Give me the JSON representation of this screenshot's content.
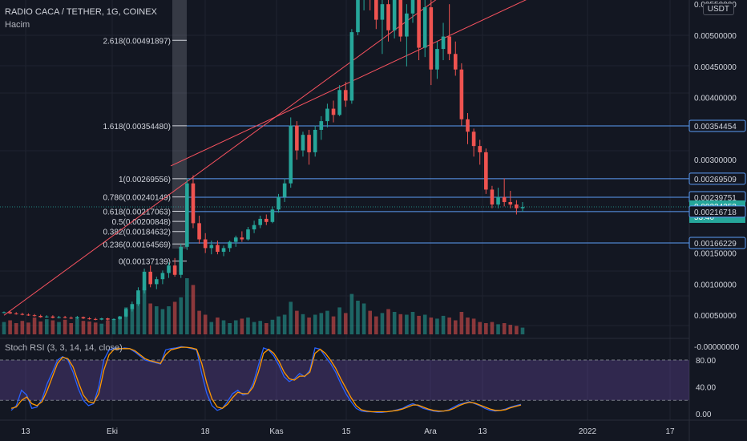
{
  "header": {
    "symbol": "RADIO CACA / TETHER, 1G, COINEX",
    "volume_label": "Hacim",
    "currency": "USDT"
  },
  "indicator": {
    "label": "Stoch RSI (3, 3, 14, 14, close)"
  },
  "colors": {
    "bg": "#131722",
    "up": "#26a69a",
    "down": "#ef5350",
    "grid": "#1f2330",
    "fib": "#9598a1",
    "hline": "#5b9cf6",
    "channel": "#f7525f",
    "rsi_k": "#2962ff",
    "rsi_d": "#ff9800",
    "rsi_band": "#7e57c2"
  },
  "chart_data": [
    {
      "type": "candlestick",
      "y_axis": {
        "range": [
          -0.0002,
          0.0059
        ],
        "ticks": [
          "0.00500000",
          "0.00450000",
          "0.00400000",
          "0.00300000",
          "0.00150000",
          "0.00100000",
          "0.00050000",
          "-0.00000000"
        ],
        "truncated_top_tick": "0.00550000"
      },
      "x_axis": {
        "ticks": [
          "13",
          "Eki",
          "18",
          "Kas",
          "15",
          "Ara",
          "13",
          "2022",
          "17"
        ]
      },
      "price_tags": [
        {
          "label": "0.00354454",
          "value": 0.00354454,
          "style": "line"
        },
        {
          "label": "0.00269509",
          "value": 0.00269509,
          "style": "line"
        },
        {
          "label": "0.00239751",
          "value": 0.00239751,
          "style": "line"
        },
        {
          "label": "0.00224252",
          "value": 0.00224252,
          "style": "current",
          "countdown": "53:40"
        },
        {
          "label": "0.00216718",
          "value": 0.00216718,
          "style": "line"
        },
        {
          "label": "0.00166229",
          "value": 0.00166229,
          "style": "line"
        }
      ],
      "fib_levels": [
        {
          "label": "2.618(0.00491897)",
          "value": 0.00491897
        },
        {
          "label": "1.618(0.00354480)",
          "value": 0.0035448
        },
        {
          "label": "1(0.00269556)",
          "value": 0.00269556
        },
        {
          "label": "0.786(0.00240149)",
          "value": 0.00240149
        },
        {
          "label": "0.618(0.00217063)",
          "value": 0.00217063
        },
        {
          "label": "0.5(0.00200848)",
          "value": 0.00200848
        },
        {
          "label": "0.382(0.00184632)",
          "value": 0.00184632
        },
        {
          "label": "0.236(0.00164569)",
          "value": 0.00164569
        },
        {
          "label": "0(0.00137139)",
          "value": 0.00137139
        }
      ],
      "channel": {
        "lower": [
          [
            0,
            0.0005
          ],
          [
            74,
            0.0058
          ]
        ],
        "upper": [
          [
            30,
            0.0029
          ],
          [
            90,
            0.0058
          ]
        ]
      },
      "candles": [
        [
          0.00054,
          0.00056,
          0.00053,
          0.00055
        ],
        [
          0.00055,
          0.00057,
          0.00052,
          0.00053
        ],
        [
          0.00053,
          0.00055,
          0.00051,
          0.00052
        ],
        [
          0.00052,
          0.00054,
          0.0005,
          0.00051
        ],
        [
          0.00051,
          0.00053,
          0.00049,
          0.0005
        ],
        [
          0.0005,
          0.00052,
          0.00048,
          0.00049
        ],
        [
          0.00049,
          0.00051,
          0.00046,
          0.00047
        ],
        [
          0.00047,
          0.0005,
          0.00046,
          0.00048
        ],
        [
          0.00048,
          0.0005,
          0.00045,
          0.00046
        ],
        [
          0.00046,
          0.00049,
          0.00045,
          0.00047
        ],
        [
          0.00047,
          0.00049,
          0.00045,
          0.00046
        ],
        [
          0.00046,
          0.00048,
          0.00044,
          0.00045
        ],
        [
          0.00045,
          0.00049,
          0.00044,
          0.00047
        ],
        [
          0.00047,
          0.00048,
          0.00044,
          0.00045
        ],
        [
          0.00045,
          0.00047,
          0.00043,
          0.00044
        ],
        [
          0.00044,
          0.00046,
          0.00042,
          0.00043
        ],
        [
          0.00043,
          0.00046,
          0.00042,
          0.00045
        ],
        [
          0.00045,
          0.00046,
          0.00042,
          0.00043
        ],
        [
          0.00043,
          0.00045,
          0.00042,
          0.00044
        ],
        [
          0.00044,
          0.00049,
          0.00043,
          0.00048
        ],
        [
          0.00048,
          0.00062,
          0.00047,
          0.0006
        ],
        [
          0.0006,
          0.00072,
          0.00056,
          0.00068
        ],
        [
          0.00068,
          0.00095,
          0.00065,
          0.0009
        ],
        [
          0.0009,
          0.00125,
          0.00085,
          0.0012
        ],
        [
          0.0012,
          0.0013,
          0.00095,
          0.001
        ],
        [
          0.001,
          0.00112,
          0.00092,
          0.00108
        ],
        [
          0.00108,
          0.00122,
          0.001,
          0.00118
        ],
        [
          0.00118,
          0.00135,
          0.0011,
          0.0013
        ],
        [
          0.0013,
          0.00142,
          0.00112,
          0.00115
        ],
        [
          0.00115,
          0.00165,
          0.0011,
          0.0016
        ],
        [
          0.0016,
          0.0027,
          0.00155,
          0.00262
        ],
        [
          0.00262,
          0.00275,
          0.0019,
          0.00198
        ],
        [
          0.00198,
          0.0021,
          0.00165,
          0.00172
        ],
        [
          0.00172,
          0.00182,
          0.0015,
          0.00158
        ],
        [
          0.00158,
          0.0017,
          0.00148,
          0.00163
        ],
        [
          0.00163,
          0.0017,
          0.00148,
          0.00152
        ],
        [
          0.00152,
          0.00162,
          0.00145,
          0.00158
        ],
        [
          0.00158,
          0.0017,
          0.00152,
          0.00168
        ],
        [
          0.00168,
          0.00178,
          0.0016,
          0.00175
        ],
        [
          0.00175,
          0.00185,
          0.00168,
          0.00172
        ],
        [
          0.00172,
          0.00192,
          0.0017,
          0.00188
        ],
        [
          0.00188,
          0.00202,
          0.00182,
          0.00195
        ],
        [
          0.00195,
          0.0021,
          0.0019,
          0.00205
        ],
        [
          0.00205,
          0.00212,
          0.00195,
          0.002
        ],
        [
          0.002,
          0.00225,
          0.00198,
          0.0022
        ],
        [
          0.0022,
          0.00245,
          0.00215,
          0.0024
        ],
        [
          0.0024,
          0.0027,
          0.00232,
          0.00262
        ],
        [
          0.00262,
          0.00368,
          0.00255,
          0.00355
        ],
        [
          0.00355,
          0.00362,
          0.003,
          0.00315
        ],
        [
          0.00315,
          0.00345,
          0.00305,
          0.0034
        ],
        [
          0.0034,
          0.00348,
          0.00292,
          0.00312
        ],
        [
          0.00312,
          0.00355,
          0.00305,
          0.00348
        ],
        [
          0.00348,
          0.0037,
          0.00332,
          0.00362
        ],
        [
          0.00362,
          0.0039,
          0.00352,
          0.00382
        ],
        [
          0.00382,
          0.00395,
          0.0036,
          0.00372
        ],
        [
          0.00372,
          0.0042,
          0.0037,
          0.00412
        ],
        [
          0.00412,
          0.00425,
          0.00385,
          0.00395
        ],
        [
          0.00395,
          0.0051,
          0.0039,
          0.00505
        ],
        [
          0.00505,
          0.0058,
          0.005,
          0.0057
        ],
        [
          0.0057,
          0.0059,
          0.0054,
          0.00575
        ],
        [
          0.0058,
          0.0059,
          0.0054,
          0.00562
        ],
        [
          0.00562,
          0.0059,
          0.0051,
          0.00525
        ],
        [
          0.00525,
          0.0057,
          0.0047,
          0.0055
        ],
        [
          0.0055,
          0.0058,
          0.0049,
          0.00508
        ],
        [
          0.00508,
          0.0059,
          0.00495,
          0.0057
        ],
        [
          0.0057,
          0.0059,
          0.0049,
          0.00498
        ],
        [
          0.00498,
          0.0055,
          0.0045,
          0.00535
        ],
        [
          0.00535,
          0.0059,
          0.0052,
          0.0058
        ],
        [
          0.0058,
          0.0059,
          0.0046,
          0.0048
        ],
        [
          0.0048,
          0.0056,
          0.00465,
          0.00545
        ],
        [
          0.00545,
          0.0057,
          0.0042,
          0.00445
        ],
        [
          0.00445,
          0.0049,
          0.0043,
          0.00478
        ],
        [
          0.00478,
          0.0052,
          0.0046,
          0.00498
        ],
        [
          0.00498,
          0.0055,
          0.0046,
          0.0047
        ],
        [
          0.0047,
          0.0049,
          0.00435,
          0.00445
        ],
        [
          0.00445,
          0.00455,
          0.00355,
          0.00365
        ],
        [
          0.00365,
          0.00375,
          0.00325,
          0.00345
        ],
        [
          0.00345,
          0.0035,
          0.00305,
          0.00322
        ],
        [
          0.00322,
          0.00332,
          0.00292,
          0.00312
        ],
        [
          0.00312,
          0.00318,
          0.00245,
          0.00252
        ],
        [
          0.00252,
          0.00258,
          0.00222,
          0.00228
        ],
        [
          0.00228,
          0.00255,
          0.00222,
          0.0024
        ],
        [
          0.0024,
          0.0027,
          0.00225,
          0.00232
        ],
        [
          0.00232,
          0.0025,
          0.00222,
          0.00228
        ],
        [
          0.00228,
          0.00235,
          0.00212,
          0.00222
        ],
        [
          0.00222,
          0.00232,
          0.00216,
          0.00224
        ]
      ],
      "volume": [
        0.22,
        0.25,
        0.2,
        0.24,
        0.21,
        0.3,
        0.23,
        0.27,
        0.25,
        0.22,
        0.26,
        0.2,
        0.28,
        0.24,
        0.23,
        0.21,
        0.19,
        0.25,
        0.27,
        0.32,
        0.48,
        0.46,
        0.64,
        0.84,
        0.55,
        0.5,
        0.45,
        0.5,
        0.58,
        0.66,
        1.0,
        0.88,
        0.42,
        0.35,
        0.22,
        0.3,
        0.25,
        0.2,
        0.25,
        0.28,
        0.3,
        0.22,
        0.24,
        0.2,
        0.26,
        0.32,
        0.35,
        0.58,
        0.42,
        0.36,
        0.3,
        0.35,
        0.38,
        0.42,
        0.32,
        0.48,
        0.38,
        0.72,
        0.6,
        0.55,
        0.42,
        0.32,
        0.38,
        0.45,
        0.4,
        0.36,
        0.35,
        0.4,
        0.33,
        0.35,
        0.3,
        0.28,
        0.33,
        0.3,
        0.25,
        0.4,
        0.3,
        0.28,
        0.22,
        0.2,
        0.22,
        0.18,
        0.2,
        0.17,
        0.15,
        0.12
      ]
    },
    {
      "type": "line",
      "title": "Stoch RSI (3, 3, 14, 14, close)",
      "y_axis": {
        "ticks": [
          "80.00",
          "40.00",
          "0.00"
        ],
        "range": [
          -5,
          100
        ],
        "band": [
          20,
          80
        ]
      },
      "series": [
        {
          "key": "k",
          "values": [
            5,
            12,
            35,
            28,
            8,
            10,
            22,
            45,
            62,
            80,
            85,
            80,
            62,
            38,
            20,
            12,
            15,
            40,
            80,
            95,
            98,
            96,
            98,
            97,
            92,
            86,
            80,
            78,
            76,
            74,
            95,
            97,
            98,
            100,
            99,
            97,
            95,
            60,
            30,
            12,
            5,
            8,
            18,
            30,
            35,
            28,
            30,
            45,
            72,
            98,
            95,
            86,
            72,
            55,
            48,
            52,
            60,
            55,
            65,
            98,
            96,
            85,
            75,
            62,
            45,
            30,
            18,
            8,
            4,
            3,
            3,
            2,
            2,
            3,
            4,
            6,
            8,
            12,
            15,
            12,
            8,
            6,
            4,
            3,
            4,
            6,
            10,
            14,
            16,
            18,
            15,
            12,
            8,
            5,
            4,
            5,
            7,
            10,
            12,
            14
          ]
        },
        {
          "key": "d",
          "values": [
            8,
            10,
            20,
            25,
            15,
            12,
            18,
            35,
            55,
            75,
            84,
            82,
            70,
            48,
            28,
            18,
            16,
            30,
            65,
            88,
            96,
            97,
            97,
            97,
            94,
            88,
            82,
            79,
            77,
            75,
            88,
            95,
            97,
            99,
            99,
            98,
            96,
            75,
            45,
            22,
            10,
            8,
            14,
            24,
            32,
            30,
            30,
            40,
            62,
            90,
            96,
            90,
            78,
            62,
            52,
            50,
            56,
            56,
            62,
            90,
            96,
            90,
            80,
            68,
            52,
            38,
            24,
            12,
            6,
            4,
            3,
            3,
            3,
            3,
            4,
            5,
            7,
            10,
            13,
            13,
            10,
            7,
            5,
            4,
            4,
            5,
            8,
            12,
            15,
            17,
            16,
            13,
            10,
            7,
            5,
            5,
            6,
            9,
            11,
            13
          ]
        }
      ]
    }
  ]
}
